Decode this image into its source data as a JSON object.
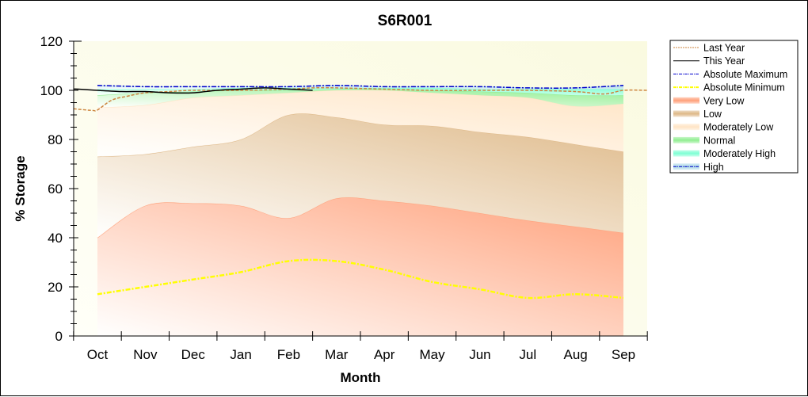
{
  "chart_data": {
    "type": "area",
    "title": "S6R001",
    "xlabel": "Month",
    "ylabel": "% Storage",
    "ylim": [
      0,
      120
    ],
    "yticks": [
      0,
      20,
      40,
      60,
      80,
      100,
      120
    ],
    "categories": [
      "Oct",
      "Nov",
      "Dec",
      "Jan",
      "Feb",
      "Mar",
      "Apr",
      "May",
      "Jun",
      "Jul",
      "Aug",
      "Sep"
    ],
    "grid": false,
    "legend_position": "right",
    "bands": [
      {
        "name": "Very Low",
        "color": "#ffa07a",
        "lower": [
          0,
          0,
          0,
          0,
          0,
          0,
          0,
          0,
          0,
          0,
          0,
          0
        ],
        "upper": [
          40,
          53,
          54,
          53,
          48,
          56,
          55,
          53,
          50,
          47,
          44.5,
          42
        ]
      },
      {
        "name": "Low",
        "color": "#deb887",
        "lower": [
          40,
          53,
          54,
          53,
          48,
          56,
          55,
          53,
          50,
          47,
          44.5,
          42
        ],
        "upper": [
          73,
          74,
          77,
          80,
          90,
          89,
          86,
          85.5,
          83,
          81,
          78,
          75
        ]
      },
      {
        "name": "Moderately Low",
        "color": "#ffe4c4",
        "lower": [
          73,
          74,
          77,
          80,
          90,
          89,
          86,
          85.5,
          83,
          81,
          78,
          75
        ],
        "upper": [
          93,
          94,
          97,
          98,
          99,
          100,
          100,
          99,
          98,
          97,
          93.5,
          94.5
        ]
      },
      {
        "name": "Normal",
        "color": "#90ee90",
        "lower": [
          93,
          94,
          97,
          98,
          99,
          100,
          100,
          99,
          98,
          97,
          93.5,
          94.5
        ],
        "upper": [
          98,
          99,
          99.5,
          100,
          100,
          100.5,
          100.5,
          100,
          99.5,
          99,
          98,
          98
        ]
      },
      {
        "name": "Moderately High",
        "color": "#7fffd4",
        "lower": [
          98,
          99,
          99.5,
          100,
          100,
          100.5,
          100.5,
          100,
          99.5,
          99,
          98,
          98
        ],
        "upper": [
          100.5,
          100.5,
          100.5,
          101,
          101,
          101,
          101,
          101,
          100.5,
          100.5,
          100.5,
          100.5
        ]
      },
      {
        "name": "High",
        "color": "#add8e6",
        "lower": [
          100.5,
          100.5,
          100.5,
          101,
          101,
          101,
          101,
          101,
          100.5,
          100.5,
          100.5,
          100.5
        ],
        "upper": [
          102,
          101.5,
          101.5,
          101.5,
          101.5,
          102,
          101.5,
          101.5,
          101.5,
          101,
          101,
          102
        ]
      }
    ],
    "series": [
      {
        "name": "Last Year",
        "color": "#cd853f",
        "style": "dashed",
        "x": [
          -0.5,
          -0.1,
          0.0,
          0.3,
          0.6,
          1.0,
          1.5,
          2.0,
          3.0,
          4.0,
          4.5,
          5.0,
          6.0,
          7.0,
          8.0,
          9.0,
          10.0,
          10.6,
          11.0,
          11.5
        ],
        "values": [
          92.5,
          91.8,
          92,
          96,
          97.5,
          99,
          99.5,
          100,
          100,
          100.5,
          101,
          101,
          100.5,
          100,
          100,
          100,
          99.5,
          98.5,
          100,
          100
        ]
      },
      {
        "name": "This Year",
        "color": "#000000",
        "style": "solid",
        "x": [
          -0.5,
          -0.4,
          0.0,
          0.5,
          1.0,
          1.5,
          2.0,
          2.5,
          3.0,
          3.5,
          4.0,
          4.5
        ],
        "values": [
          100.5,
          100.5,
          100,
          99.5,
          99.5,
          99,
          99,
          100,
          100.5,
          101,
          100.5,
          100
        ]
      },
      {
        "name": "Absolute Maximum",
        "color": "#0000cd",
        "style": "dashdot",
        "x": [
          0,
          1,
          2,
          3,
          4,
          5,
          6,
          7,
          8,
          9,
          10,
          11
        ],
        "values": [
          102,
          101.5,
          101.5,
          101.5,
          101.5,
          102,
          101.5,
          101.5,
          101.5,
          101,
          101,
          102
        ]
      },
      {
        "name": "Absolute Minimum",
        "color": "#ffff00",
        "style": "dashdot",
        "x": [
          0,
          1,
          2,
          3,
          4,
          5,
          6,
          7,
          8,
          9,
          10,
          11
        ],
        "values": [
          17,
          20,
          23,
          26,
          30.5,
          30.5,
          27,
          22,
          19,
          15.5,
          17,
          15.5
        ]
      }
    ],
    "legend": [
      "Last Year",
      "This Year",
      "Absolute Maximum",
      "Absolute Minimum",
      "Very Low",
      "Low",
      "Moderately Low",
      "Normal",
      "Moderately High",
      "High"
    ]
  }
}
